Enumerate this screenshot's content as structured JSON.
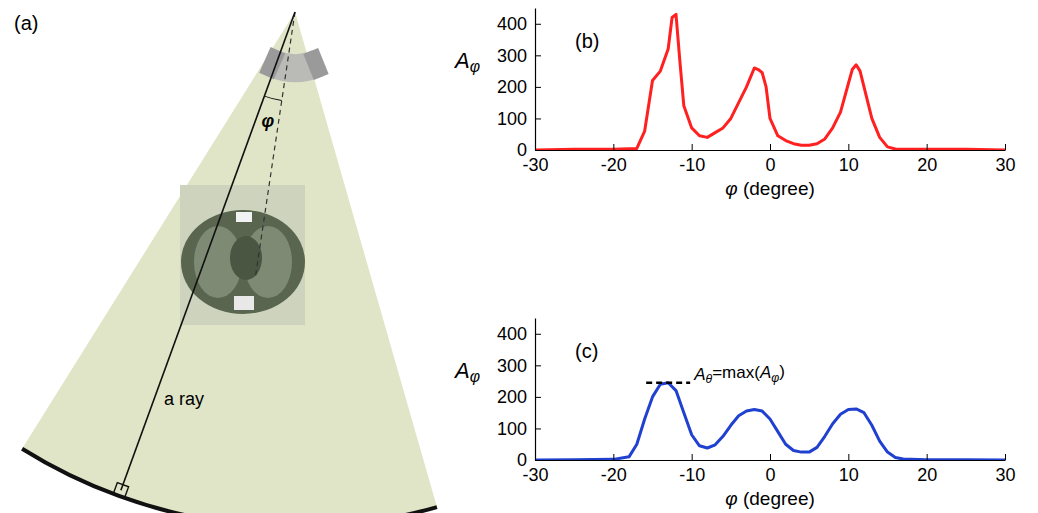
{
  "diagram": {
    "panel_label": "(a)",
    "angle_label": "φ",
    "ray_label": "a ray"
  },
  "chart_data": [
    {
      "type": "line",
      "title": "(b)",
      "xlabel": "φ (degree)",
      "ylabel": "Aφ",
      "color": "#ff2020",
      "xlim": [
        -30,
        30
      ],
      "ylim": [
        0,
        450
      ],
      "xticks": [
        -30,
        -20,
        -10,
        0,
        10,
        20,
        30
      ],
      "yticks": [
        0,
        100,
        200,
        300,
        400
      ],
      "x": [
        -30,
        -25,
        -20,
        -17,
        -16,
        -15,
        -14,
        -13,
        -12.5,
        -12,
        -11.5,
        -11,
        -10,
        -9,
        -8,
        -7,
        -6,
        -5,
        -4,
        -3,
        -2,
        -1.5,
        -1,
        -0.5,
        0,
        1,
        2,
        3,
        4,
        5,
        6,
        7,
        8,
        9,
        10,
        10.5,
        11,
        11.5,
        12,
        13,
        14,
        15,
        16,
        17,
        20,
        25,
        30
      ],
      "values": [
        0,
        2,
        2,
        5,
        60,
        220,
        250,
        320,
        420,
        430,
        280,
        140,
        70,
        45,
        40,
        55,
        70,
        100,
        150,
        200,
        260,
        255,
        245,
        200,
        100,
        45,
        30,
        20,
        15,
        15,
        20,
        35,
        70,
        120,
        210,
        255,
        270,
        250,
        200,
        100,
        40,
        10,
        3,
        2,
        2,
        2,
        0
      ]
    },
    {
      "type": "line",
      "title": "(c)",
      "xlabel": "φ (degree)",
      "ylabel": "Aφ",
      "color": "#2040d0",
      "annotation": "Aθ=max(Aφ)",
      "xlim": [
        -30,
        30
      ],
      "ylim": [
        0,
        450
      ],
      "xticks": [
        -30,
        -20,
        -10,
        0,
        10,
        20,
        30
      ],
      "yticks": [
        0,
        100,
        200,
        300,
        400
      ],
      "x": [
        -30,
        -25,
        -20,
        -18,
        -17,
        -16,
        -15,
        -14,
        -13,
        -12,
        -11,
        -10,
        -9,
        -8,
        -7,
        -6,
        -5,
        -4,
        -3,
        -2,
        -1,
        0,
        1,
        2,
        3,
        4,
        5,
        6,
        7,
        8,
        9,
        10,
        11,
        12,
        13,
        14,
        15,
        16,
        17,
        20,
        25,
        30
      ],
      "values": [
        0,
        1,
        2,
        10,
        50,
        130,
        200,
        240,
        245,
        220,
        150,
        80,
        45,
        38,
        48,
        75,
        110,
        140,
        155,
        160,
        155,
        130,
        90,
        50,
        30,
        25,
        25,
        40,
        75,
        115,
        145,
        160,
        162,
        150,
        110,
        60,
        25,
        8,
        3,
        1,
        1,
        0
      ]
    }
  ]
}
